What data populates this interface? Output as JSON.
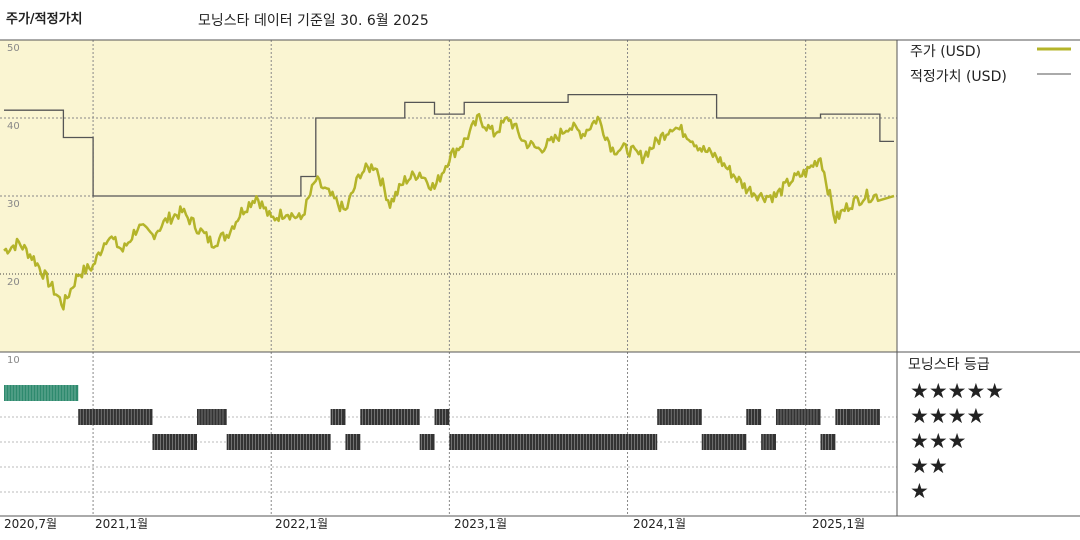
{
  "header": {
    "title": "주가/적정가치",
    "subtitle": "모닝스타 데이터 기준일 30. 6월 2025"
  },
  "legend": [
    {
      "label": "주가 (USD)",
      "color": "#b4b42a"
    },
    {
      "label": "적정가치 (USD)",
      "color": "#555555"
    }
  ],
  "rating_panel": {
    "title": "모닝스타 등급",
    "stars": [
      "★★★★★",
      "★★★★",
      "★★★",
      "★★",
      "★"
    ]
  },
  "colors": {
    "price": "#b4b42a",
    "fair_value": "#555555",
    "upper_bg": "#faf5d2",
    "five_star_bars": "#2e8a6e",
    "rating_bars": "#333333"
  },
  "chart_data": {
    "type": "line",
    "title": "모닝스타 데이터 기준일 30. 6월 2025",
    "x_range": [
      "2020-07",
      "2025-06"
    ],
    "x_tick_labels": [
      "2020,7월",
      "2021,1월",
      "2022,1월",
      "2023,1월",
      "2024,1월",
      "2025,1월"
    ],
    "y_tick_labels": [
      "50",
      "40",
      "30",
      "20",
      "10"
    ],
    "ylim": [
      10,
      50
    ],
    "grid": true,
    "legend_position": "top-right",
    "series": [
      {
        "name": "주가 (USD)",
        "points": [
          [
            "2020-07",
            23
          ],
          [
            "2020-08",
            24
          ],
          [
            "2020-09",
            22
          ],
          [
            "2020-10",
            19
          ],
          [
            "2020-11",
            16
          ],
          [
            "2020-12",
            20
          ],
          [
            "2021-01",
            21
          ],
          [
            "2021-02",
            25
          ],
          [
            "2021-03",
            23
          ],
          [
            "2021-04",
            26
          ],
          [
            "2021-05",
            25
          ],
          [
            "2021-06",
            27
          ],
          [
            "2021-07",
            28
          ],
          [
            "2021-08",
            26
          ],
          [
            "2021-09",
            24
          ],
          [
            "2021-10",
            25
          ],
          [
            "2021-11",
            28
          ],
          [
            "2021-12",
            30
          ],
          [
            "2022-01",
            27
          ],
          [
            "2022-02",
            28
          ],
          [
            "2022-03",
            27
          ],
          [
            "2022-04",
            32
          ],
          [
            "2022-05",
            30
          ],
          [
            "2022-06",
            28
          ],
          [
            "2022-07",
            33
          ],
          [
            "2022-08",
            34
          ],
          [
            "2022-09",
            29
          ],
          [
            "2022-10",
            32
          ],
          [
            "2022-11",
            33
          ],
          [
            "2022-12",
            31
          ],
          [
            "2023-01",
            35
          ],
          [
            "2023-02",
            37
          ],
          [
            "2023-03",
            40
          ],
          [
            "2023-04",
            38
          ],
          [
            "2023-05",
            40
          ],
          [
            "2023-06",
            37
          ],
          [
            "2023-07",
            36
          ],
          [
            "2023-08",
            37
          ],
          [
            "2023-09",
            39
          ],
          [
            "2023-10",
            38
          ],
          [
            "2023-11",
            40
          ],
          [
            "2023-12",
            36
          ],
          [
            "2024-01",
            36
          ],
          [
            "2024-02",
            35
          ],
          [
            "2024-03",
            37
          ],
          [
            "2024-04",
            39
          ],
          [
            "2024-05",
            38
          ],
          [
            "2024-06",
            36
          ],
          [
            "2024-07",
            35
          ],
          [
            "2024-08",
            33
          ],
          [
            "2024-09",
            31
          ],
          [
            "2024-10",
            30
          ],
          [
            "2024-11",
            30
          ],
          [
            "2024-12",
            32
          ],
          [
            "2025-01",
            33
          ],
          [
            "2025-02",
            35
          ],
          [
            "2025-03",
            27
          ],
          [
            "2025-04",
            29
          ],
          [
            "2025-05",
            30
          ],
          [
            "2025-06",
            30
          ]
        ]
      },
      {
        "name": "적정가치 (USD)",
        "steps": [
          [
            "2020-07",
            41
          ],
          [
            "2020-11",
            37.5
          ],
          [
            "2021-01",
            30
          ],
          [
            "2022-03",
            32.5
          ],
          [
            "2022-04",
            40
          ],
          [
            "2022-10",
            42
          ],
          [
            "2022-12",
            40.5
          ],
          [
            "2023-02",
            42
          ],
          [
            "2023-09",
            43
          ],
          [
            "2024-07",
            40
          ],
          [
            "2025-02",
            40.5
          ],
          [
            "2025-06",
            37
          ]
        ]
      }
    ],
    "star_rating": [
      {
        "from": "2020-07",
        "to": "2020-12",
        "stars": 5
      },
      {
        "from": "2020-12",
        "to": "2021-05",
        "stars": 4
      },
      {
        "from": "2021-05",
        "to": "2021-08",
        "stars": 3
      },
      {
        "from": "2021-08",
        "to": "2021-10",
        "stars": 4
      },
      {
        "from": "2021-10",
        "to": "2022-05",
        "stars": 3
      },
      {
        "from": "2022-05",
        "to": "2022-06",
        "stars": 4
      },
      {
        "from": "2022-06",
        "to": "2022-07",
        "stars": 3
      },
      {
        "from": "2022-07",
        "to": "2022-11",
        "stars": 4
      },
      {
        "from": "2022-11",
        "to": "2022-12",
        "stars": 3
      },
      {
        "from": "2022-12",
        "to": "2023-01",
        "stars": 4
      },
      {
        "from": "2023-01",
        "to": "2024-03",
        "stars": 3
      },
      {
        "from": "2024-03",
        "to": "2024-06",
        "stars": 4
      },
      {
        "from": "2024-06",
        "to": "2024-09",
        "stars": 3
      },
      {
        "from": "2024-09",
        "to": "2024-10",
        "stars": 4
      },
      {
        "from": "2024-10",
        "to": "2024-11",
        "stars": 3
      },
      {
        "from": "2024-11",
        "to": "2025-02",
        "stars": 4
      },
      {
        "from": "2025-02",
        "to": "2025-03",
        "stars": 3
      },
      {
        "from": "2025-03",
        "to": "2025-04",
        "stars": 4
      },
      {
        "from": "2025-04",
        "to": "2025-06",
        "stars": 4
      }
    ]
  }
}
